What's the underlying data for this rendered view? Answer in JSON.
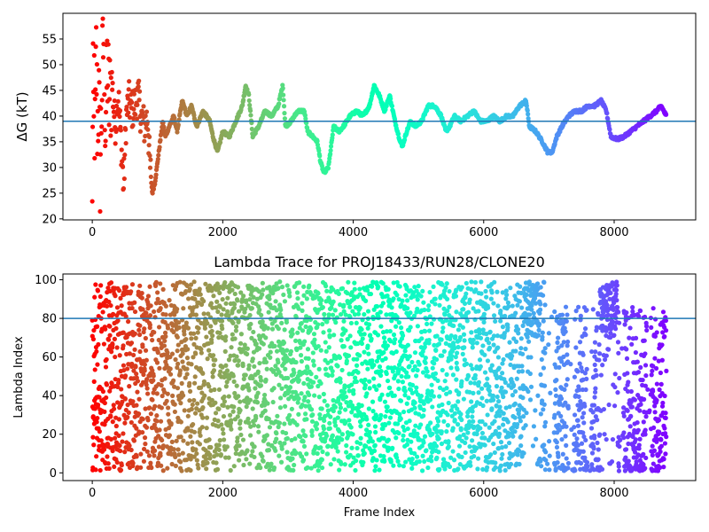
{
  "chart_data": [
    {
      "type": "scatter",
      "title": "",
      "xlabel": "",
      "ylabel": "ΔG (kT)",
      "xlim": [
        -450,
        9250
      ],
      "ylim": [
        19.8,
        60
      ],
      "xticks": [
        0,
        2000,
        4000,
        6000,
        8000
      ],
      "yticks": [
        20,
        25,
        30,
        35,
        40,
        45,
        50,
        55
      ],
      "hline": 39,
      "hline_color": "#1f77b4",
      "colormap": "rainbow (red at frame 0 → violet at final frame)",
      "x_range_frames": [
        0,
        8800
      ],
      "trace": [
        [
          0,
          20
        ],
        [
          10,
          57
        ],
        [
          20,
          28
        ],
        [
          30,
          48
        ],
        [
          40,
          33
        ],
        [
          60,
          52
        ],
        [
          80,
          38
        ],
        [
          100,
          44
        ],
        [
          120,
          30
        ],
        [
          150,
          46
        ],
        [
          180,
          58
        ],
        [
          200,
          36
        ],
        [
          230,
          50
        ],
        [
          260,
          42
        ],
        [
          300,
          47
        ],
        [
          350,
          38
        ],
        [
          400,
          44
        ],
        [
          450,
          33
        ],
        [
          480,
          26
        ],
        [
          520,
          40
        ],
        [
          560,
          43
        ],
        [
          600,
          41
        ],
        [
          650,
          42
        ],
        [
          700,
          44
        ],
        [
          750,
          40
        ],
        [
          800,
          38
        ],
        [
          850,
          40
        ],
        [
          880,
          31
        ],
        [
          920,
          25
        ],
        [
          960,
          27
        ],
        [
          1000,
          31
        ],
        [
          1040,
          35
        ],
        [
          1080,
          39
        ],
        [
          1120,
          36
        ],
        [
          1180,
          38
        ],
        [
          1250,
          40
        ],
        [
          1300,
          37
        ],
        [
          1380,
          43
        ],
        [
          1450,
          40
        ],
        [
          1520,
          42
        ],
        [
          1600,
          38
        ],
        [
          1700,
          41
        ],
        [
          1800,
          39
        ],
        [
          1850,
          36
        ],
        [
          1920,
          33
        ],
        [
          2000,
          37
        ],
        [
          2100,
          36
        ],
        [
          2200,
          39
        ],
        [
          2300,
          42
        ],
        [
          2350,
          46
        ],
        [
          2400,
          44
        ],
        [
          2460,
          36
        ],
        [
          2550,
          38
        ],
        [
          2650,
          41
        ],
        [
          2750,
          40
        ],
        [
          2850,
          42
        ],
        [
          2920,
          46
        ],
        [
          2960,
          38
        ],
        [
          3050,
          39
        ],
        [
          3150,
          41
        ],
        [
          3250,
          41
        ],
        [
          3300,
          37
        ],
        [
          3380,
          36
        ],
        [
          3450,
          35
        ],
        [
          3500,
          31
        ],
        [
          3550,
          29
        ],
        [
          3620,
          30
        ],
        [
          3700,
          38
        ],
        [
          3780,
          37
        ],
        [
          3850,
          38
        ],
        [
          3950,
          40
        ],
        [
          4050,
          41
        ],
        [
          4150,
          40
        ],
        [
          4250,
          42
        ],
        [
          4320,
          46
        ],
        [
          4400,
          44
        ],
        [
          4480,
          41
        ],
        [
          4560,
          44
        ],
        [
          4640,
          39
        ],
        [
          4700,
          36
        ],
        [
          4750,
          34
        ],
        [
          4820,
          37
        ],
        [
          4880,
          39
        ],
        [
          4950,
          38
        ],
        [
          5050,
          39
        ],
        [
          5150,
          42
        ],
        [
          5250,
          42
        ],
        [
          5350,
          40
        ],
        [
          5420,
          37
        ],
        [
          5480,
          38
        ],
        [
          5550,
          40
        ],
        [
          5650,
          39
        ],
        [
          5750,
          40
        ],
        [
          5850,
          41
        ],
        [
          5950,
          39
        ],
        [
          6050,
          39
        ],
        [
          6150,
          40
        ],
        [
          6250,
          39
        ],
        [
          6350,
          40
        ],
        [
          6450,
          40
        ],
        [
          6550,
          42
        ],
        [
          6650,
          43
        ],
        [
          6700,
          38
        ],
        [
          6800,
          37
        ],
        [
          6900,
          35
        ],
        [
          6980,
          33
        ],
        [
          7050,
          33
        ],
        [
          7120,
          36
        ],
        [
          7200,
          38
        ],
        [
          7300,
          40
        ],
        [
          7400,
          41
        ],
        [
          7500,
          41
        ],
        [
          7600,
          42
        ],
        [
          7700,
          42
        ],
        [
          7800,
          43
        ],
        [
          7880,
          41
        ],
        [
          7950,
          36
        ],
        [
          8050,
          35.5
        ],
        [
          8150,
          36
        ],
        [
          8250,
          37
        ],
        [
          8350,
          38
        ],
        [
          8450,
          39
        ],
        [
          8550,
          40
        ],
        [
          8650,
          41
        ],
        [
          8720,
          42
        ],
        [
          8800,
          40
        ]
      ]
    },
    {
      "type": "scatter",
      "title": "Lambda Trace for PROJ18433/RUN28/CLONE20",
      "xlabel": "Frame Index",
      "ylabel": "Lambda Index",
      "xlim": [
        -450,
        9250
      ],
      "ylim": [
        -4,
        103
      ],
      "xticks": [
        0,
        2000,
        4000,
        6000,
        8000
      ],
      "yticks": [
        0,
        20,
        40,
        60,
        80,
        100
      ],
      "hline": 80,
      "hline_color": "#1f77b4",
      "colormap": "rainbow (red at frame 0 → violet at final frame)",
      "x_range_frames": [
        0,
        8800
      ],
      "lambda_range": [
        1,
        99
      ],
      "dense_high_regions": [
        [
          6620,
          6880
        ],
        [
          7780,
          8050
        ]
      ],
      "sparse_regions": [
        [
          6950,
          7080
        ],
        [
          7300,
          7380
        ],
        [
          7580,
          7650
        ],
        [
          8080,
          8140
        ],
        [
          8500,
          8560
        ]
      ]
    }
  ]
}
